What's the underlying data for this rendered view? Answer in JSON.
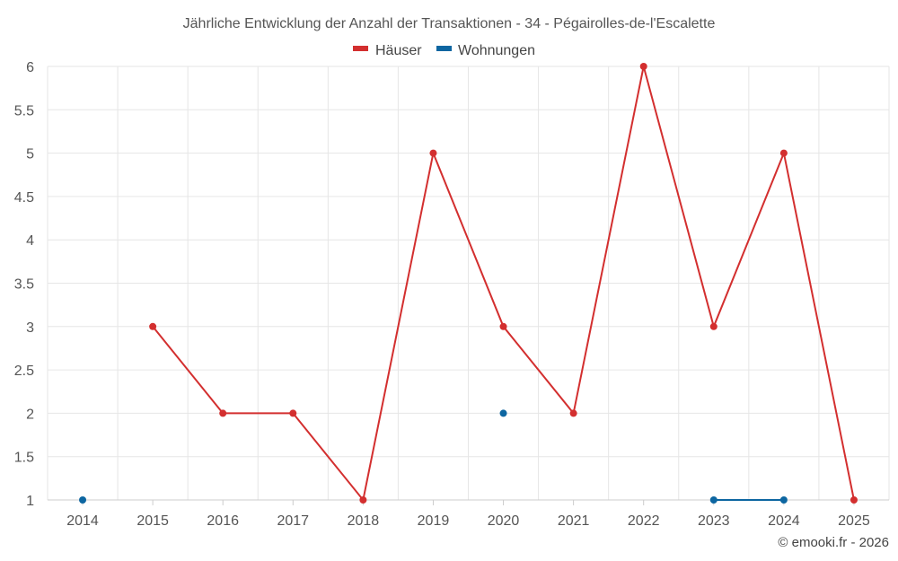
{
  "chart_data": {
    "type": "line",
    "title": "Jährliche Entwicklung der Anzahl der Transaktionen - 34 - Pégairolles-de-l'Escalette",
    "x": [
      2014,
      2015,
      2016,
      2017,
      2018,
      2019,
      2020,
      2021,
      2022,
      2023,
      2024,
      2025
    ],
    "x_tick_labels": [
      "2014",
      "2015",
      "2016",
      "2017",
      "2018",
      "2019",
      "2020",
      "2021",
      "2022",
      "2023",
      "2024",
      "2025"
    ],
    "y_tick_labels": [
      "1",
      "1.5",
      "2",
      "2.5",
      "3",
      "3.5",
      "4",
      "4.5",
      "5",
      "5.5",
      "6"
    ],
    "ylim": [
      1,
      6
    ],
    "grid": true,
    "legend_position": "top-center",
    "series": [
      {
        "name": "Häuser",
        "color": "#d32f2f",
        "values": [
          null,
          3,
          2,
          2,
          1,
          5,
          3,
          2,
          6,
          3,
          5,
          1
        ]
      },
      {
        "name": "Wohnungen",
        "color": "#0d66a1",
        "values": [
          1,
          null,
          null,
          null,
          null,
          null,
          2,
          null,
          null,
          1,
          1,
          null
        ]
      }
    ]
  },
  "credit": "© emooki.fr - 2026"
}
